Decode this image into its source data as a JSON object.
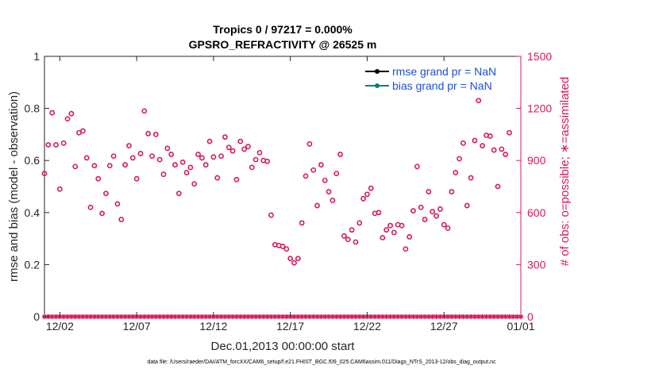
{
  "chart_data": {
    "type": "scatter",
    "title": "Tropics 0 / 97217 = 0.000%",
    "subtitle": "GPSRO_REFRACTIVITY @ 26525 m",
    "xlabel": "Dec.01,2013 00:00:00 start",
    "ylabel_left": "rmse and bias (model - observation)",
    "ylabel_right": "# of obs: o=possible; ∗=assimilated",
    "xlim": [
      0,
      31
    ],
    "ylim_left": [
      0,
      1
    ],
    "ylim_right": [
      0,
      1500
    ],
    "x_ticks": [
      {
        "value": 1,
        "label": "12/02"
      },
      {
        "value": 6,
        "label": "12/07"
      },
      {
        "value": 11,
        "label": "12/12"
      },
      {
        "value": 16,
        "label": "12/17"
      },
      {
        "value": 21,
        "label": "12/22"
      },
      {
        "value": 26,
        "label": "12/27"
      },
      {
        "value": 31,
        "label": "01/01"
      }
    ],
    "y_ticks_left": [
      0,
      0.2,
      0.4,
      0.6,
      0.8,
      1
    ],
    "y_tick_labels_left": [
      "0",
      "0.2",
      "0.4",
      "0.6",
      "0.8",
      "1"
    ],
    "y_ticks_right": [
      0,
      300,
      600,
      900,
      1200,
      1500
    ],
    "y_tick_labels_right": [
      "0",
      "300",
      "600",
      "900",
      "1200",
      "1500"
    ],
    "legend": {
      "position": "top-right",
      "entries": [
        {
          "label": "rmse grand pr = NaN",
          "color": "#000000"
        },
        {
          "label": "bias grand pr = NaN",
          "color": "#008080"
        }
      ]
    },
    "series": [
      {
        "name": "possible observations",
        "axis": "right",
        "marker": "o",
        "color": "#d6195b",
        "points": [
          [
            0.0,
            825
          ],
          [
            0.25,
            990
          ],
          [
            0.5,
            1175
          ],
          [
            0.75,
            990
          ],
          [
            1.0,
            735
          ],
          [
            1.25,
            1000
          ],
          [
            1.5,
            1140
          ],
          [
            1.75,
            1170
          ],
          [
            2.0,
            865
          ],
          [
            2.25,
            1060
          ],
          [
            2.5,
            1070
          ],
          [
            2.75,
            915
          ],
          [
            3.0,
            630
          ],
          [
            3.25,
            870
          ],
          [
            3.5,
            795
          ],
          [
            3.75,
            595
          ],
          [
            4.0,
            710
          ],
          [
            4.25,
            870
          ],
          [
            4.5,
            925
          ],
          [
            4.75,
            650
          ],
          [
            5.0,
            560
          ],
          [
            5.25,
            875
          ],
          [
            5.5,
            985
          ],
          [
            5.75,
            915
          ],
          [
            6.0,
            795
          ],
          [
            6.25,
            940
          ],
          [
            6.5,
            1185
          ],
          [
            6.75,
            1055
          ],
          [
            7.0,
            925
          ],
          [
            7.25,
            1050
          ],
          [
            7.5,
            905
          ],
          [
            7.75,
            820
          ],
          [
            8.0,
            970
          ],
          [
            8.25,
            935
          ],
          [
            8.5,
            875
          ],
          [
            8.75,
            710
          ],
          [
            9.0,
            890
          ],
          [
            9.25,
            830
          ],
          [
            9.5,
            860
          ],
          [
            9.75,
            765
          ],
          [
            10.0,
            935
          ],
          [
            10.25,
            915
          ],
          [
            10.5,
            875
          ],
          [
            10.75,
            1010
          ],
          [
            11.0,
            920
          ],
          [
            11.25,
            800
          ],
          [
            11.5,
            925
          ],
          [
            11.75,
            1035
          ],
          [
            12.0,
            975
          ],
          [
            12.25,
            955
          ],
          [
            12.5,
            790
          ],
          [
            12.75,
            1010
          ],
          [
            13.0,
            965
          ],
          [
            13.25,
            980
          ],
          [
            13.5,
            860
          ],
          [
            13.75,
            905
          ],
          [
            14.0,
            945
          ],
          [
            14.25,
            900
          ],
          [
            14.5,
            895
          ],
          [
            14.75,
            585
          ],
          [
            15.0,
            415
          ],
          [
            15.25,
            410
          ],
          [
            15.5,
            405
          ],
          [
            15.75,
            390
          ],
          [
            16.0,
            335
          ],
          [
            16.25,
            310
          ],
          [
            16.5,
            335
          ],
          [
            16.75,
            540
          ],
          [
            17.0,
            810
          ],
          [
            17.25,
            995
          ],
          [
            17.5,
            845
          ],
          [
            17.75,
            640
          ],
          [
            18.0,
            875
          ],
          [
            18.25,
            785
          ],
          [
            18.5,
            720
          ],
          [
            18.75,
            670
          ],
          [
            19.0,
            825
          ],
          [
            19.25,
            935
          ],
          [
            19.5,
            465
          ],
          [
            19.75,
            445
          ],
          [
            20.0,
            500
          ],
          [
            20.25,
            430
          ],
          [
            20.5,
            540
          ],
          [
            20.75,
            680
          ],
          [
            21.0,
            705
          ],
          [
            21.25,
            740
          ],
          [
            21.5,
            595
          ],
          [
            21.75,
            600
          ],
          [
            22.0,
            455
          ],
          [
            22.25,
            500
          ],
          [
            22.5,
            525
          ],
          [
            22.75,
            485
          ],
          [
            23.0,
            530
          ],
          [
            23.25,
            525
          ],
          [
            23.5,
            390
          ],
          [
            23.75,
            460
          ],
          [
            24.0,
            610
          ],
          [
            24.25,
            865
          ],
          [
            24.5,
            630
          ],
          [
            24.75,
            560
          ],
          [
            25.0,
            720
          ],
          [
            25.25,
            605
          ],
          [
            25.5,
            580
          ],
          [
            25.75,
            620
          ],
          [
            26.0,
            530
          ],
          [
            26.25,
            510
          ],
          [
            26.5,
            720
          ],
          [
            26.75,
            830
          ],
          [
            27.0,
            910
          ],
          [
            27.25,
            1000
          ],
          [
            27.5,
            640
          ],
          [
            27.75,
            800
          ],
          [
            28.0,
            1015
          ],
          [
            28.25,
            1245
          ],
          [
            28.5,
            985
          ],
          [
            28.75,
            1045
          ],
          [
            29.0,
            1040
          ],
          [
            29.25,
            960
          ],
          [
            29.5,
            750
          ],
          [
            29.75,
            965
          ],
          [
            30.0,
            935
          ],
          [
            30.25,
            1060
          ]
        ]
      },
      {
        "name": "assimilated observations",
        "axis": "right",
        "marker": "*",
        "color": "#d6195b",
        "constant_value": 0,
        "x_start": 0,
        "x_end": 31,
        "x_step": 0.25
      }
    ]
  },
  "footer": {
    "data_file": "data file: /Users/raeder/DAI/ATM_forcXX/CAM6_setup/f.e21.FHIST_BGC.f09_025.CAM6assim.011/Diags_NTrS_2013-12/obs_diag_output.nc"
  },
  "colors": {
    "obs": "#d6195b",
    "legend_text": "#1a4fd6",
    "rmse": "#000000",
    "bias": "#008080"
  }
}
